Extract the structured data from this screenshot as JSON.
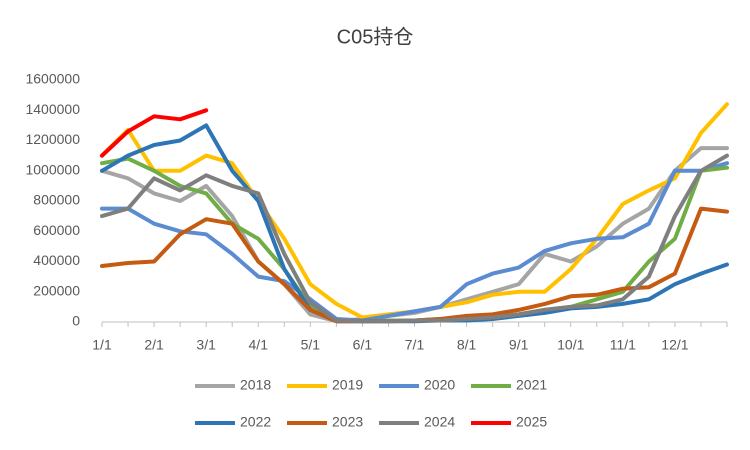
{
  "chart_data": {
    "type": "line",
    "title": "C05持仓",
    "categories": [
      "1/1",
      null,
      "2/1",
      null,
      "3/1",
      null,
      "4/1",
      null,
      "5/1",
      null,
      "6/1",
      null,
      "7/1",
      null,
      "8/1",
      null,
      "9/1",
      null,
      "10/1",
      null,
      "11/1",
      null,
      "12/1",
      null,
      null
    ],
    "ylim": [
      0,
      1600000
    ],
    "yticks": [
      0,
      200000,
      400000,
      600000,
      800000,
      1000000,
      1200000,
      1400000,
      1600000
    ],
    "grid": false,
    "legend": "bottom",
    "series": [
      {
        "name": "2018",
        "color": "#a5a5a5",
        "values": [
          1000000,
          950000,
          850000,
          800000,
          900000,
          700000,
          400000,
          250000,
          50000,
          5000,
          20000,
          40000,
          60000,
          100000,
          150000,
          200000,
          250000,
          450000,
          400000,
          500000,
          650000,
          750000,
          1000000,
          1150000,
          1150000
        ]
      },
      {
        "name": "2019",
        "color": "#ffc000",
        "values": [
          1100000,
          1270000,
          1000000,
          1000000,
          1100000,
          1050000,
          800000,
          550000,
          250000,
          120000,
          30000,
          50000,
          70000,
          100000,
          130000,
          180000,
          200000,
          200000,
          350000,
          550000,
          780000,
          870000,
          950000,
          1250000,
          1440000
        ]
      },
      {
        "name": "2020",
        "color": "#5b8bd0",
        "values": [
          750000,
          750000,
          650000,
          600000,
          580000,
          450000,
          300000,
          270000,
          150000,
          20000,
          10000,
          40000,
          70000,
          100000,
          250000,
          320000,
          360000,
          470000,
          520000,
          550000,
          560000,
          650000,
          1000000,
          1000000,
          1050000
        ]
      },
      {
        "name": "2021",
        "color": "#70ad47",
        "values": [
          1050000,
          1080000,
          1000000,
          900000,
          850000,
          650000,
          550000,
          350000,
          100000,
          10000,
          5000,
          10000,
          10000,
          20000,
          20000,
          30000,
          50000,
          80000,
          100000,
          150000,
          200000,
          400000,
          550000,
          1000000,
          1020000
        ]
      },
      {
        "name": "2022",
        "color": "#2e75b6",
        "values": [
          1000000,
          1100000,
          1170000,
          1200000,
          1300000,
          1000000,
          800000,
          350000,
          80000,
          5000,
          5000,
          5000,
          5000,
          10000,
          10000,
          20000,
          40000,
          60000,
          90000,
          100000,
          120000,
          150000,
          250000,
          320000,
          380000
        ]
      },
      {
        "name": "2023",
        "color": "#c55a11",
        "values": [
          370000,
          390000,
          400000,
          580000,
          680000,
          650000,
          400000,
          250000,
          80000,
          5000,
          5000,
          5000,
          10000,
          20000,
          40000,
          50000,
          80000,
          120000,
          170000,
          180000,
          220000,
          230000,
          320000,
          750000,
          730000
        ]
      },
      {
        "name": "2024",
        "color": "#7f7f7f",
        "values": [
          700000,
          750000,
          950000,
          870000,
          970000,
          900000,
          850000,
          450000,
          130000,
          10000,
          5000,
          5000,
          10000,
          10000,
          20000,
          30000,
          50000,
          80000,
          100000,
          110000,
          150000,
          300000,
          700000,
          1000000,
          1100000
        ]
      },
      {
        "name": "2025",
        "color": "#ff0000",
        "values": [
          1100000,
          1260000,
          1360000,
          1340000,
          1400000,
          null,
          null,
          null,
          null,
          null,
          null,
          null,
          null,
          null,
          null,
          null,
          null,
          null,
          null,
          null,
          null,
          null,
          null,
          null,
          null
        ]
      }
    ]
  }
}
